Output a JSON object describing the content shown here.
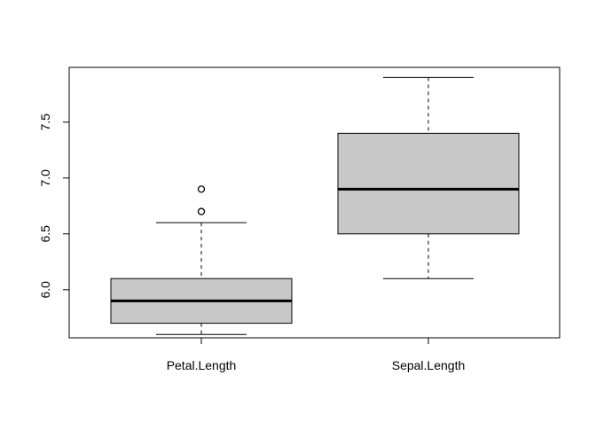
{
  "chart_data": {
    "type": "box",
    "title": "",
    "xlabel": "",
    "ylabel": "",
    "ylim": [
      5.57,
      7.99
    ],
    "yticks": [
      6.0,
      6.5,
      7.0,
      7.5
    ],
    "ytick_labels": [
      "6.0",
      "6.5",
      "7.0",
      "7.5"
    ],
    "grid": false,
    "legend": "none",
    "colors": {
      "box_fill": "#c8c8c8",
      "stroke": "#000000",
      "background": "#ffffff"
    },
    "categories": [
      "Petal.Length",
      "Sepal.Length"
    ],
    "series": [
      {
        "category": "Petal.Length",
        "whisker_low": 5.6,
        "q1": 5.7,
        "median": 5.9,
        "q3": 6.1,
        "whisker_high": 6.6,
        "outliers": [
          6.7,
          6.9
        ]
      },
      {
        "category": "Sepal.Length",
        "whisker_low": 6.1,
        "q1": 6.5,
        "median": 6.9,
        "q3": 7.4,
        "whisker_high": 7.9,
        "outliers": []
      }
    ]
  }
}
